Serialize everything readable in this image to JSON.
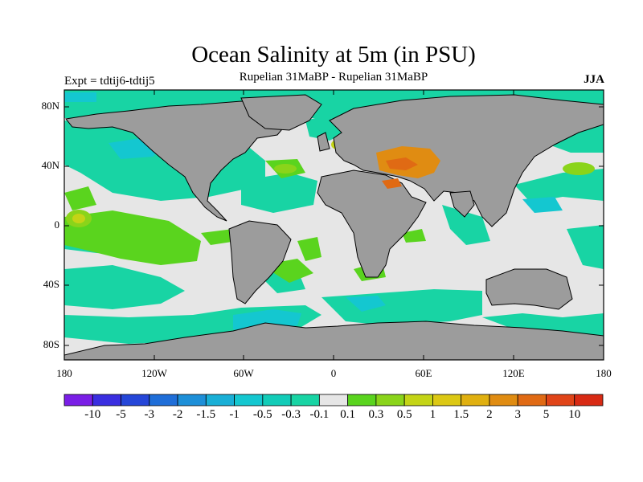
{
  "header": {
    "title": "Ocean Salinity at 5m (in PSU)",
    "subtitle": "Rupelian  31MaBP - Rupelian  31MaBP",
    "experiment": "Expt = tdtij6-tdtij5",
    "season": "JJA"
  },
  "axes": {
    "x_ticks": [
      "180",
      "120W",
      "60W",
      "0",
      "60E",
      "120E",
      "180"
    ],
    "y_ticks": [
      "80N",
      "40N",
      "0",
      "40S",
      "80S"
    ]
  },
  "colorbar": {
    "labels": [
      "-10",
      "-5",
      "-3",
      "-2",
      "-1.5",
      "-1",
      "-0.5",
      "-0.3",
      "-0.1",
      "0.1",
      "0.3",
      "0.5",
      "1",
      "1.5",
      "2",
      "3",
      "5",
      "10"
    ],
    "colors": [
      "#7a1ee6",
      "#3a2ee0",
      "#2546d8",
      "#1f6ed8",
      "#1d8fd8",
      "#19afd6",
      "#14c7d0",
      "#12ccb8",
      "#18d4a4",
      "#e6e6e6",
      "#5ad41e",
      "#8ad41a",
      "#c4d416",
      "#dcc814",
      "#e0b010",
      "#e08c12",
      "#e06a14",
      "#e04418",
      "#d82a14"
    ]
  },
  "map_colors": {
    "land": "#9c9c9c",
    "ocean_neutral": "#e6e6e6",
    "coast": "#000000"
  }
}
